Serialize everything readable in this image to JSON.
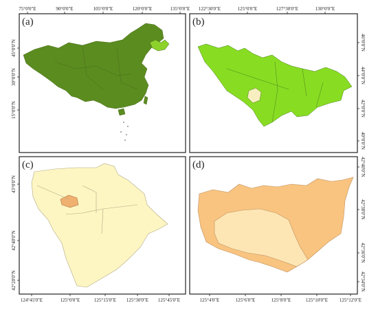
{
  "panels": [
    {
      "label": "(a)",
      "top": [
        "75°0'0\"E",
        "90°0'0\"E",
        "105°0'0\"E",
        "120°0'0\"E",
        "135°0'0\"E"
      ],
      "left": [
        "45°0'0\"N",
        "30°0'0\"N",
        "15°0'0\"N"
      ]
    },
    {
      "label": "(b)",
      "top": [
        "122°30'0\"E",
        "125°0'0\"E",
        "127°30'0\"E",
        "130°0'0\"E"
      ],
      "right": [
        "46°0'0\"N",
        "44°0'0\"N",
        "42°0'0\"N",
        "40°0'0\"N"
      ]
    },
    {
      "label": "(c)",
      "bottom": [
        "124°45'0\"E",
        "125°0'0\"E",
        "125°15'0\"E",
        "125°30'0\"E",
        "125°45'0\"E"
      ],
      "left": [
        "43°0'0\"N",
        "42°40'0\"N",
        "42°20'0\"N"
      ]
    },
    {
      "label": "(d)",
      "bottom": [
        "125°4'0\"E",
        "125°6'0\"E",
        "125°8'0\"E",
        "125°10'0\"E",
        "125°12'0\"E"
      ],
      "right": [
        "42°40'0\"N",
        "42°38'0\"N",
        "42°36'0\"N",
        "42°34'0\"N"
      ]
    }
  ]
}
